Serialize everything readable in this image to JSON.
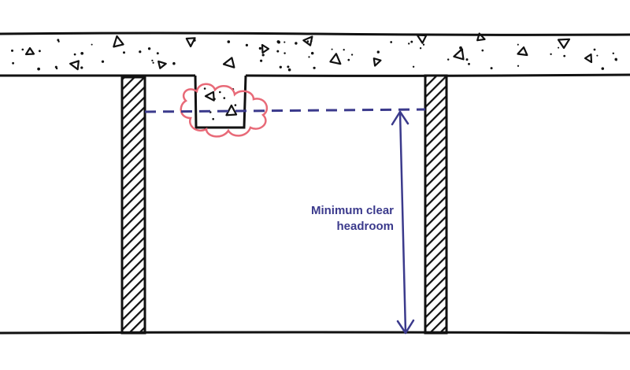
{
  "annotation": {
    "line1": "Minimum clear",
    "line2": "headroom"
  },
  "colors": {
    "ink": "#111111",
    "dimension": "#3b3a8c",
    "highlight": "#e86a78",
    "background": "#ffffff"
  }
}
